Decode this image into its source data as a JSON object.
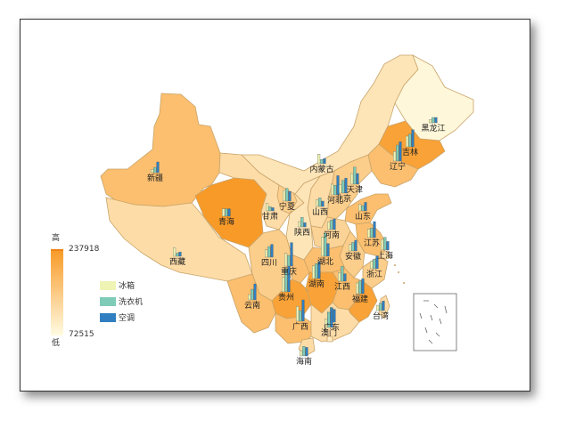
{
  "chart_data": {
    "type": "choropleth-bar-map",
    "visualmap": {
      "high_label": "高",
      "low_label": "低",
      "max": 237918,
      "min": 72515,
      "color_high": "#f89a28",
      "color_low": "#fffbe2"
    },
    "series": [
      {
        "name": "冰箱",
        "color": "#eff3b3"
      },
      {
        "name": "洗衣机",
        "color": "#7ecbb7"
      },
      {
        "name": "空调",
        "color": "#2f7fc1"
      }
    ],
    "regions": [
      {
        "name": "新疆",
        "value": 175000,
        "bars": [
          3,
          5,
          10
        ]
      },
      {
        "name": "西藏",
        "value": 125000,
        "bars": [
          8,
          3,
          4
        ]
      },
      {
        "name": "青海",
        "value": 237918,
        "bars": [
          7,
          7,
          7
        ]
      },
      {
        "name": "甘肃",
        "value": 125000,
        "bars": [
          7,
          4,
          3
        ]
      },
      {
        "name": "宁夏",
        "value": 150000,
        "bars": [
          10,
          12,
          9
        ]
      },
      {
        "name": "内蒙古",
        "value": 110000,
        "bars": [
          9,
          4,
          5
        ]
      },
      {
        "name": "黑龙江",
        "value": 80000,
        "bars": [
          3,
          5,
          5
        ]
      },
      {
        "name": "吉林",
        "value": 225000,
        "bars": [
          10,
          12,
          16
        ]
      },
      {
        "name": "辽宁",
        "value": 175000,
        "bars": [
          9,
          15,
          18
        ]
      },
      {
        "name": "北京",
        "value": 150000,
        "bars": [
          8,
          12,
          14
        ]
      },
      {
        "name": "天津",
        "value": 175000,
        "bars": [
          10,
          16,
          10
        ]
      },
      {
        "name": "河北",
        "value": 150000,
        "bars": [
          10,
          9,
          18
        ]
      },
      {
        "name": "山西",
        "value": 125000,
        "bars": [
          6,
          8,
          5
        ]
      },
      {
        "name": "山东",
        "value": 175000,
        "bars": [
          6,
          5,
          8
        ]
      },
      {
        "name": "陕西",
        "value": 110000,
        "bars": [
          5,
          9,
          4
        ]
      },
      {
        "name": "河南",
        "value": 140000,
        "bars": [
          7,
          9,
          10
        ]
      },
      {
        "name": "江苏",
        "value": 175000,
        "bars": [
          8,
          9,
          15
        ]
      },
      {
        "name": "安徽",
        "value": 150000,
        "bars": [
          6,
          8,
          10
        ]
      },
      {
        "name": "上海",
        "value": 125000,
        "bars": [
          10,
          12,
          8
        ]
      },
      {
        "name": "四川",
        "value": 150000,
        "bars": [
          7,
          10,
          12
        ]
      },
      {
        "name": "重庆",
        "value": 175000,
        "bars": [
          12,
          10,
          22
        ]
      },
      {
        "name": "湖北",
        "value": 175000,
        "bars": [
          18,
          22,
          12
        ]
      },
      {
        "name": "浙江",
        "value": 150000,
        "bars": [
          7,
          9,
          12
        ]
      },
      {
        "name": "湖南",
        "value": 225000,
        "bars": [
          12,
          14,
          16
        ]
      },
      {
        "name": "江西",
        "value": 175000,
        "bars": [
          8,
          14,
          7
        ]
      },
      {
        "name": "贵州",
        "value": 225000,
        "bars": [
          14,
          22,
          24
        ]
      },
      {
        "name": "云南",
        "value": 175000,
        "bars": [
          5,
          10,
          15
        ]
      },
      {
        "name": "福建",
        "value": 225000,
        "bars": [
          10,
          12,
          14
        ]
      },
      {
        "name": "广西",
        "value": 175000,
        "bars": [
          14,
          10,
          20
        ]
      },
      {
        "name": "广东",
        "value": 125000,
        "bars": [
          10,
          14,
          12
        ]
      },
      {
        "name": "澳门",
        "value": 100000,
        "bars": [
          8,
          14,
          18
        ]
      },
      {
        "name": "台湾",
        "value": 125000,
        "bars": [
          5,
          7,
          9
        ]
      },
      {
        "name": "海南",
        "value": 125000,
        "bars": [
          5,
          9,
          8
        ]
      }
    ]
  }
}
